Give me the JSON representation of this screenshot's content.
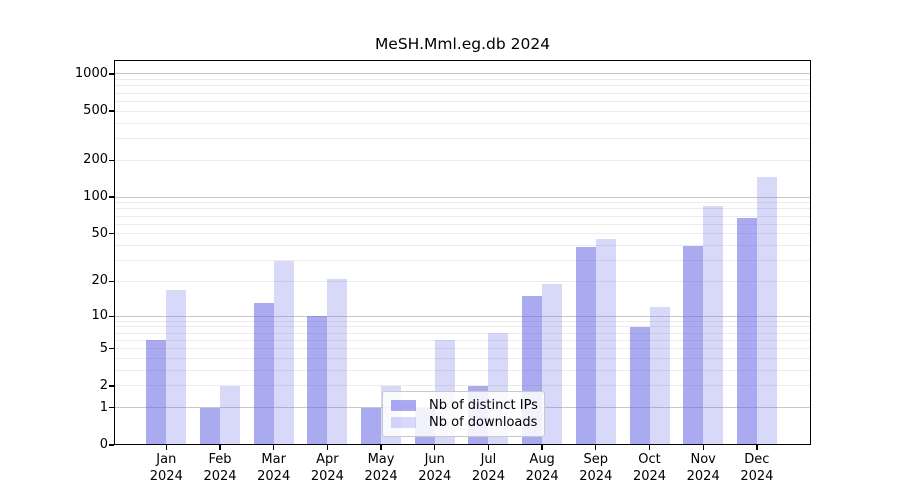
{
  "chart_data": {
    "type": "bar",
    "title": "MeSH.Mml.eg.db 2024",
    "categories": [
      "Jan",
      "Feb",
      "Mar",
      "Apr",
      "May",
      "Jun",
      "Jul",
      "Aug",
      "Sep",
      "Oct",
      "Nov",
      "Dec"
    ],
    "year_label": "2024",
    "series": [
      {
        "name": "Nb of distinct IPs",
        "values": [
          6,
          1,
          13,
          10,
          1,
          1,
          2,
          15,
          39,
          8,
          40,
          67
        ],
        "color": "rgba(100,100,230,0.55)"
      },
      {
        "name": "Nb of downloads",
        "values": [
          17,
          2,
          30,
          21,
          2,
          6,
          7,
          19,
          45,
          12,
          85,
          145
        ],
        "color": "rgba(100,100,230,0.25)"
      }
    ],
    "xlabel": "",
    "ylabel": "",
    "yscale": "log10(value+1)",
    "ylim": [
      0,
      1300
    ],
    "yticks": [
      0,
      1,
      2,
      5,
      10,
      20,
      50,
      100,
      200,
      500,
      1000
    ],
    "major_gridline_values": [
      1,
      10,
      100,
      1000
    ],
    "minor_gridline_values": [
      2,
      3,
      4,
      5,
      6,
      7,
      8,
      9,
      20,
      30,
      40,
      50,
      60,
      70,
      80,
      90,
      200,
      300,
      400,
      500,
      600,
      700,
      800,
      900
    ],
    "grid": "on",
    "legend_position": "inside bottom-center"
  },
  "colors": {
    "bar_distinct_ips_effective": "#a9a9ef",
    "bar_downloads_effective": "#d8d8f9",
    "grid_major": "#c8c8c8",
    "grid_minor": "#ebebeb",
    "axis": "#000000",
    "background": "#ffffff"
  }
}
